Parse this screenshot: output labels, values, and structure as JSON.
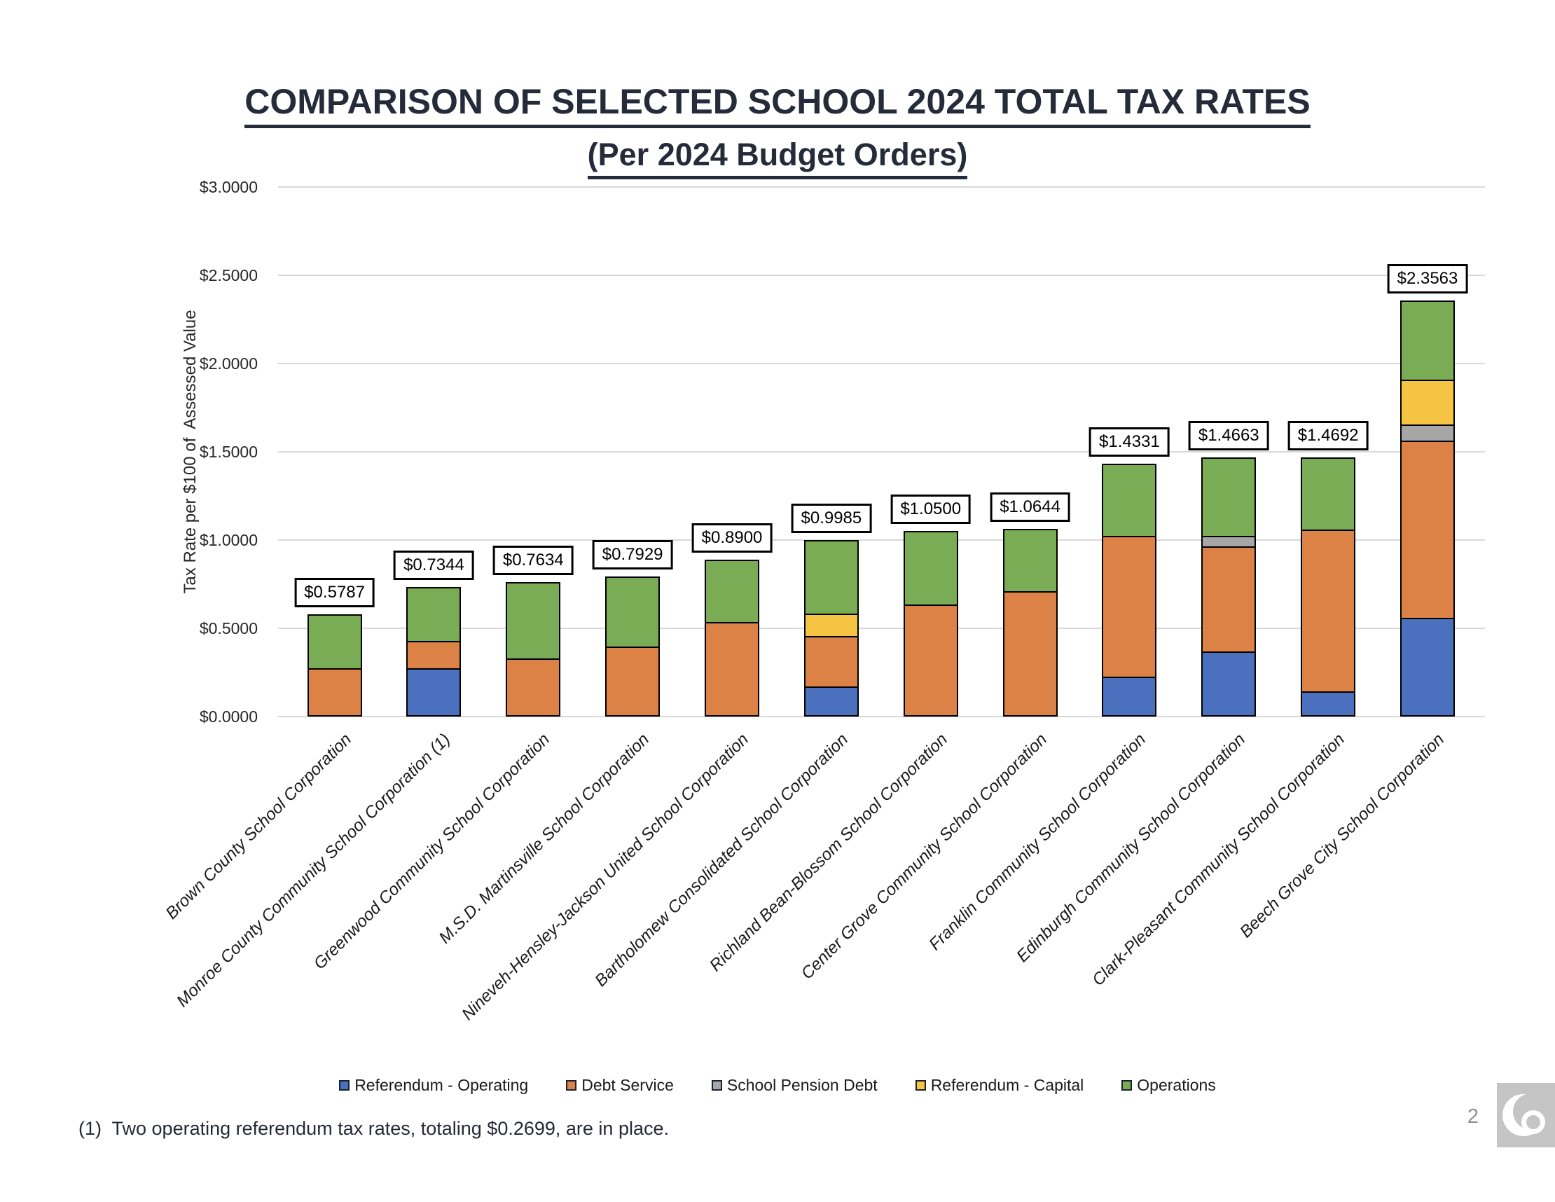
{
  "page": {
    "title_line1": "COMPARISON OF SELECTED SCHOOL 2024 TOTAL TAX RATES",
    "title_line2": "(Per 2024 Budget Orders)",
    "footnote": "(1)  Two operating referendum tax rates, totaling $0.2699, are in place.",
    "page_number": "2",
    "logo": "crescent-logo",
    "logo_bg_color": "#c5c5c5"
  },
  "chart_data": {
    "type": "bar",
    "stacked": true,
    "title": "COMPARISON OF SELECTED SCHOOL 2024 TOTAL TAX RATES (Per 2024 Budget Orders)",
    "xlabel": "",
    "ylabel": "Tax Rate per $100 of  Assessed Value",
    "ylim": [
      0,
      3
    ],
    "y_tick_step": 0.5,
    "y_ticks": [
      "$3.0000",
      "$2.5000",
      "$2.0000",
      "$1.5000",
      "$1.0000",
      "$0.5000",
      "$0.0000"
    ],
    "grid": true,
    "gridline_color": "#d9d9d9",
    "bar_border_color": "#000000",
    "legend_position": "bottom",
    "categories": [
      "Brown County School Corporation",
      "Monroe County Community School Corporation (1)",
      "Greenwood Community School Corporation",
      "M.S.D. Martinsville School Corporation",
      "Nineveh-Hensley-Jackson United School Corporation",
      "Bartholomew Consolidated School Corporation",
      "Richland Bean-Blossom School Corporation",
      "Center Grove Community School Corporation",
      "Franklin Community School Corporation",
      "Edinburgh Community School Corporation",
      "Clark-Pleasant Community School Corporation",
      "Beech Grove City School Corporation"
    ],
    "totals": [
      0.5787,
      0.7344,
      0.7634,
      0.7929,
      0.89,
      0.9985,
      1.05,
      1.0644,
      1.4331,
      1.4663,
      1.4692,
      2.3563
    ],
    "total_labels": [
      "$0.5787",
      "$0.7344",
      "$0.7634",
      "$0.7929",
      "$0.8900",
      "$0.9985",
      "$1.0500",
      "$1.0644",
      "$1.4331",
      "$1.4663",
      "$1.4692",
      "$2.3563"
    ],
    "series": [
      {
        "name": "Referendum - Operating",
        "color": "#4a70be",
        "values": [
          0,
          0.2699,
          0,
          0,
          0,
          0.1605,
          0,
          0,
          0.216,
          0.365,
          0.1305,
          0.556
        ]
      },
      {
        "name": "Debt Service",
        "color": "#dd8246",
        "values": [
          0.27,
          0.153,
          0.324,
          0.3929,
          0.5355,
          0.2884,
          0.6345,
          0.7114,
          0.8061,
          0.603,
          0.9271,
          1.014
        ]
      },
      {
        "name": "School Pension Debt",
        "color": "#a6a6a6",
        "values": [
          0,
          0,
          0,
          0,
          0,
          0,
          0,
          0,
          0,
          0.0515,
          0,
          0.086
        ]
      },
      {
        "name": "Referendum - Capital",
        "color": "#f4c442",
        "values": [
          0,
          0,
          0,
          0,
          0,
          0.1236,
          0,
          0,
          0,
          0,
          0,
          0.25
        ]
      },
      {
        "name": "Operations",
        "color": "#7aab55",
        "values": [
          0.3087,
          0.3115,
          0.4394,
          0.4,
          0.3545,
          0.426,
          0.4155,
          0.353,
          0.411,
          0.4468,
          0.4116,
          0.4503
        ]
      }
    ]
  }
}
